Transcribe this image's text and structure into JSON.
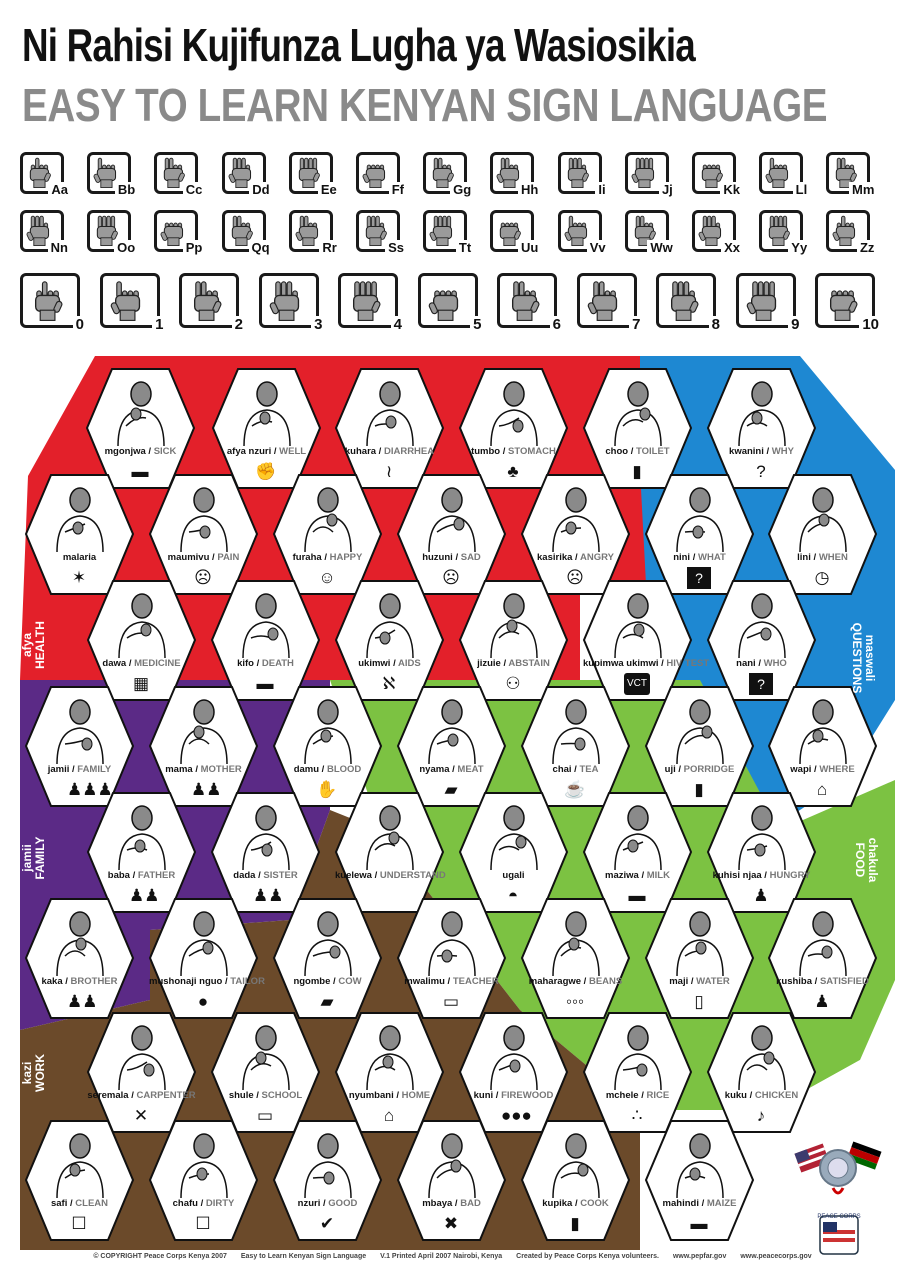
{
  "title_sw": "Ni Rahisi Kujifunza Lugha ya Wasiosikia",
  "title_en": "EASY TO LEARN KENYAN SIGN LANGUAGE",
  "alphabet_row1": [
    "Aa",
    "Bb",
    "Cc",
    "Dd",
    "Ee",
    "Ff",
    "Gg",
    "Hh",
    "Ii",
    "Jj",
    "Kk",
    "Ll",
    "Mm"
  ],
  "alphabet_row2": [
    "Nn",
    "Oo",
    "Pp",
    "Qq",
    "Rr",
    "Ss",
    "Tt",
    "Uu",
    "Vv",
    "Ww",
    "Xx",
    "Yy",
    "Zz"
  ],
  "numbers": [
    "0",
    "1",
    "2",
    "3",
    "4",
    "5",
    "6",
    "7",
    "8",
    "9",
    "10"
  ],
  "colors": {
    "health": "#e3202a",
    "questions": "#1e88d2",
    "family": "#5b2a86",
    "food": "#7cc242",
    "work": "#6b4a2a"
  },
  "sections": {
    "health_sw": "afya",
    "health_en": "HEALTH",
    "questions_sw": "maswali",
    "questions_en": "QUESTIONS",
    "family_sw": "jamii",
    "family_en": "FAMILY",
    "food_sw": "chakula",
    "food_en": "FOOD",
    "work_sw": "kazi",
    "work_en": "WORK"
  },
  "signs": [
    {
      "sw": "mgonjwa",
      "en": "SICK",
      "icon": "bed-icon"
    },
    {
      "sw": "afya nzuri",
      "en": "WELL",
      "icon": "strong-person-icon"
    },
    {
      "sw": "kuhara",
      "en": "DIARRHEA",
      "icon": "drip-icon"
    },
    {
      "sw": "tumbo",
      "en": "STOMACH",
      "icon": "stomach-icon"
    },
    {
      "sw": "choo",
      "en": "TOILET",
      "icon": "toilet-icon"
    },
    {
      "sw": "kwanini",
      "en": "WHY",
      "icon": "question-icon"
    },
    {
      "sw": "malaria",
      "en": "",
      "icon": "mosquito-icon"
    },
    {
      "sw": "maumivu",
      "en": "PAIN",
      "icon": "pain-face-icon"
    },
    {
      "sw": "furaha",
      "en": "HAPPY",
      "icon": "happy-face-icon"
    },
    {
      "sw": "huzuni",
      "en": "SAD",
      "icon": "sad-face-icon"
    },
    {
      "sw": "kasirika",
      "en": "ANGRY",
      "icon": "angry-face-icon"
    },
    {
      "sw": "nini",
      "en": "WHAT",
      "icon": "question-box-icon"
    },
    {
      "sw": "lini",
      "en": "WHEN",
      "icon": "clock-question-icon"
    },
    {
      "sw": "dawa",
      "en": "MEDICINE",
      "icon": "pills-icon"
    },
    {
      "sw": "kifo",
      "en": "DEATH",
      "icon": "coffin-icon"
    },
    {
      "sw": "ukimwi",
      "en": "AIDS",
      "icon": "ribbon-icon"
    },
    {
      "sw": "jizuie",
      "en": "ABSTAIN",
      "icon": "couple-icon"
    },
    {
      "sw": "kupimwa ukimwi",
      "en": "HIV TEST",
      "icon": "vct-icon"
    },
    {
      "sw": "nani",
      "en": "WHO",
      "icon": "person-question-icon"
    },
    {
      "sw": "jamii",
      "en": "FAMILY",
      "icon": "family-icon"
    },
    {
      "sw": "mama",
      "en": "MOTHER",
      "icon": "mother-icon"
    },
    {
      "sw": "damu",
      "en": "BLOOD",
      "icon": "blood-hand-icon"
    },
    {
      "sw": "nyama",
      "en": "MEAT",
      "icon": "cow-meat-icon"
    },
    {
      "sw": "chai",
      "en": "TEA",
      "icon": "cup-icon"
    },
    {
      "sw": "uji",
      "en": "PORRIDGE",
      "icon": "unga-packet-icon"
    },
    {
      "sw": "wapi",
      "en": "WHERE",
      "icon": "house-question-icon"
    },
    {
      "sw": "baba",
      "en": "FATHER",
      "icon": "father-icon"
    },
    {
      "sw": "dada",
      "en": "SISTER",
      "icon": "sister-icon"
    },
    {
      "sw": "kuelewa",
      "en": "UNDERSTAND",
      "icon": ""
    },
    {
      "sw": "ugali",
      "en": "",
      "icon": "ugali-icon"
    },
    {
      "sw": "maziwa",
      "en": "MILK",
      "icon": "milk-icon"
    },
    {
      "sw": "kuhisi njaa",
      "en": "HUNGRY",
      "icon": "hungry-icon"
    },
    {
      "sw": "kaka",
      "en": "BROTHER",
      "icon": "brother-icon"
    },
    {
      "sw": "mushonaji nguo",
      "en": "TAILOR",
      "icon": "thread-icon"
    },
    {
      "sw": "ngombe",
      "en": "COW",
      "icon": "cow-icon"
    },
    {
      "sw": "mwalimu",
      "en": "TEACHER",
      "icon": "blackboard-icon"
    },
    {
      "sw": "maharagwe",
      "en": "BEANS",
      "icon": "beans-icon"
    },
    {
      "sw": "maji",
      "en": "WATER",
      "icon": "glass-icon"
    },
    {
      "sw": "kushiba",
      "en": "SATISFIED",
      "icon": "full-person-icon"
    },
    {
      "sw": "seremala",
      "en": "CARPENTER",
      "icon": "hammer-icon"
    },
    {
      "sw": "shule",
      "en": "SCHOOL",
      "icon": "school-icon"
    },
    {
      "sw": "nyumbani",
      "en": "HOME",
      "icon": "house-icon"
    },
    {
      "sw": "kuni",
      "en": "FIREWOOD",
      "icon": "firewood-icon"
    },
    {
      "sw": "mchele",
      "en": "RICE",
      "icon": "rice-icon"
    },
    {
      "sw": "kuku",
      "en": "CHICKEN",
      "icon": "chicken-icon"
    },
    {
      "sw": "safi",
      "en": "CLEAN",
      "icon": "clean-shirt-icon"
    },
    {
      "sw": "chafu",
      "en": "DIRTY",
      "icon": "dirty-shirt-icon"
    },
    {
      "sw": "nzuri",
      "en": "GOOD",
      "icon": "check-icon"
    },
    {
      "sw": "mbaya",
      "en": "BAD",
      "icon": "cross-icon"
    },
    {
      "sw": "kupika",
      "en": "COOK",
      "icon": "stove-icon"
    },
    {
      "sw": "mahindi",
      "en": "MAIZE",
      "icon": "maize-icon"
    }
  ],
  "footer": [
    "© COPYRIGHT Peace Corps Kenya 2007",
    "Easy to Learn Kenyan Sign Language",
    "V.1 Printed April 2007 Nairobi, Kenya",
    "Created by Peace Corps Kenya volunteers.",
    "www.pepfar.gov",
    "www.peacecorps.gov"
  ],
  "logo_text": "PEACE CORPS"
}
